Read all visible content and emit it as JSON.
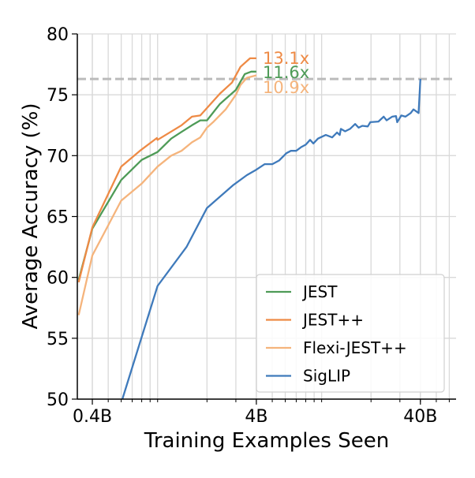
{
  "chart_data": {
    "type": "line",
    "xlabel": "Training Examples Seen",
    "ylabel": "Average Accuracy (%)",
    "x_scale": "log",
    "x_unit": "billions of examples",
    "xlim": [
      0.324,
      66
    ],
    "ylim": [
      50,
      80
    ],
    "x_ticks": [
      {
        "value": 0.4,
        "label": "0.4B"
      },
      {
        "value": 4,
        "label": "4B"
      },
      {
        "value": 40,
        "label": "40B"
      }
    ],
    "y_ticks": [
      50,
      55,
      60,
      65,
      70,
      75,
      80
    ],
    "grid": true,
    "legend_position": "lower-right",
    "reference_line": {
      "y": 76.3,
      "style": "dashed",
      "color": "#bbbbbb"
    },
    "series": [
      {
        "name": "JEST",
        "color": "#4e9b57",
        "end_label": "11.6x",
        "x": [
          0.33,
          0.4,
          0.6,
          0.8,
          1.0,
          1.21,
          1.4,
          1.62,
          1.82,
          2.0,
          2.4,
          3.0,
          3.4,
          3.72,
          4.0
        ],
        "y": [
          59.8,
          64.0,
          68.0,
          69.65,
          70.3,
          71.4,
          71.95,
          72.5,
          72.9,
          72.9,
          74.25,
          75.4,
          76.7,
          76.9,
          76.9
        ]
      },
      {
        "name": "JEST++",
        "color": "#ee8a45",
        "end_label": "13.1x",
        "x": [
          0.33,
          0.4,
          0.6,
          0.78,
          0.99,
          1.0,
          1.4,
          1.62,
          1.82,
          2.4,
          2.84,
          3.2,
          3.66,
          4.0
        ],
        "y": [
          59.6,
          64.1,
          69.1,
          70.4,
          71.45,
          71.3,
          72.5,
          73.2,
          73.3,
          75.1,
          76.0,
          77.3,
          78.0,
          78.0
        ]
      },
      {
        "name": "Flexi-JEST++",
        "color": "#f5b47c",
        "end_label": "10.9x",
        "x": [
          0.33,
          0.4,
          0.6,
          0.8,
          1.0,
          1.21,
          1.4,
          1.62,
          1.82,
          2.0,
          2.2,
          2.6,
          3.0,
          3.2,
          3.5,
          4.0
        ],
        "y": [
          56.9,
          61.8,
          66.3,
          67.7,
          69.1,
          70.0,
          70.4,
          71.1,
          71.5,
          72.3,
          72.8,
          73.8,
          75.0,
          75.8,
          76.4,
          76.6
        ]
      },
      {
        "name": "SigLIP",
        "color": "#3f7abb",
        "end_label": "",
        "x": [
          0.61,
          1.0,
          1.5,
          2.0,
          2.9,
          3.5,
          4.0,
          4.5,
          5.0,
          5.5,
          6.1,
          6.5,
          7.0,
          7.5,
          8.0,
          8.5,
          8.9,
          9.5,
          10.6,
          11.6,
          12.4,
          12.9,
          13.1,
          13.9,
          14.9,
          16.0,
          16.8,
          17.7,
          19.1,
          19.8,
          22.2,
          23.9,
          24.9,
          26.9,
          28.4,
          28.9,
          30.6,
          32.4,
          34.9,
          36.3,
          39.0,
          40.0
        ],
        "y": [
          50.0,
          59.3,
          62.5,
          65.7,
          67.6,
          68.4,
          68.85,
          69.3,
          69.3,
          69.6,
          70.2,
          70.4,
          70.4,
          70.7,
          70.9,
          71.3,
          71.0,
          71.4,
          71.7,
          71.5,
          71.9,
          71.7,
          72.2,
          72.0,
          72.2,
          72.6,
          72.3,
          72.45,
          72.4,
          72.75,
          72.8,
          73.2,
          72.9,
          73.2,
          73.25,
          72.75,
          73.3,
          73.2,
          73.5,
          73.8,
          73.5,
          76.3
        ]
      }
    ]
  }
}
